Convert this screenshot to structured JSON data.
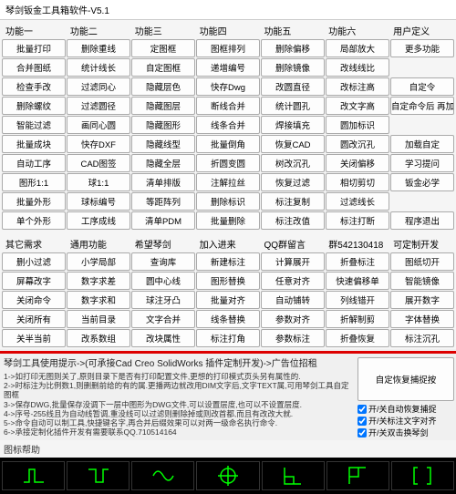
{
  "window_title": "琴剑钣金工具箱软件-V5.1",
  "section1": {
    "headers": [
      "功能一",
      "功能二",
      "功能三",
      "功能四",
      "功能五",
      "功能六",
      "用户定义"
    ],
    "rows": [
      [
        "批量打印",
        "删除重线",
        "定图框",
        "图框排列",
        "删除偏移",
        "局部放大",
        "更多功能"
      ],
      [
        "合并图纸",
        "统计线长",
        "自定图框",
        "递增编号",
        "删除镜像",
        "改线线比",
        ""
      ],
      [
        "检查手改",
        "过滤同心",
        "隐藏层色",
        "快存Dwg",
        "改圆直径",
        "改标注高",
        "自定令"
      ],
      [
        "删除螺纹",
        "过滤圆径",
        "隐藏图层",
        "断线合并",
        "统计圆孔",
        "改文字高",
        "自定命令后 再加载自定"
      ],
      [
        "智能过滤",
        "画同心圆",
        "隐藏图形",
        "线条合并",
        "焊接填充",
        "圆加标识",
        ""
      ],
      [
        "批量成块",
        "快存DXF",
        "隐藏线型",
        "批量倒角",
        "恢复CAD",
        "圆改沉孔",
        "加载自定"
      ],
      [
        "自动工序",
        "CAD图签",
        "隐藏全层",
        "折圆变圆",
        "树改沉孔",
        "关闭偏移",
        "学习提问"
      ],
      [
        "图形1:1",
        "球1:1",
        "清单排版",
        "注解拉丝",
        "恢复过滤",
        "相切剪切",
        "钣金必学"
      ],
      [
        "批量外形",
        "球标编号",
        "等距阵列",
        "删除标识",
        "标注复制",
        "过滤线长",
        ""
      ],
      [
        "单个外形",
        "工序成线",
        "清单PDM",
        "批量删除",
        "标注改值",
        "标注打断",
        "程序退出"
      ]
    ]
  },
  "section2": {
    "headers": [
      "其它需求",
      "通用功能",
      "希望琴剑",
      "加入进来",
      "QQ群留言",
      "群542130418",
      "可定制开发"
    ],
    "rows": [
      [
        "删小过滤",
        "小学局部",
        "查询库",
        "新建标注",
        "计算展开",
        "折叠标注",
        "图纸切开"
      ],
      [
        "屏幕改字",
        "数字求差",
        "圆中心线",
        "图形替换",
        "任意对齐",
        "快速偏移单",
        "智能镜像"
      ],
      [
        "关闭命令",
        "数字求和",
        "球注牙凸",
        "批量对齐",
        "自动铺转",
        "列线错开",
        "展开数字"
      ],
      [
        "关闭所有",
        "当前目录",
        "文字合并",
        "线条替换",
        "参数对齐",
        "折解制剪",
        "字体替换"
      ],
      [
        "关半当前",
        "改系数组",
        "改块属性",
        "标注打角",
        "参数标注",
        "折叠恢复",
        "标注沉孔"
      ]
    ]
  },
  "bottom": {
    "title": "琴剑工具使用提示->(可承接Cad Creo SolidWorks 插件定制开发)->广告位招租",
    "tips": [
      "1->如打印无图则关了,原则目录下是否有打印配置文件,更想的打印模式页头另有属性的.",
      "2->时标注为比例数1,则删删前给的有的属.更播两边就改用DIM文字后,文字TEXT属,可用琴剑工具自定图框",
      "3->保存DWG,批量保存没调下一层中图形为DWG文件,可以设置层度,也可以不设置层度.",
      "4->序号-255线且为自动线暂调,重没线可以过滤则删除掉或则改首都,而且有改改大就.",
      "5->命令自动可以制工具,快捷键名字,再合并后缀效果可以对两一级命名执行命令.",
      "6->承接定制化插件开发有需要联系QQ.710514164"
    ],
    "side_button": "自定恢复捕捉按",
    "checks": [
      {
        "label": "开/关自动恢复捕捉",
        "checked": true
      },
      {
        "label": "开/关标注文字对齐",
        "checked": true
      },
      {
        "label": "开/关双击换琴剑",
        "checked": true
      }
    ]
  },
  "icon_label": "图标帮助"
}
